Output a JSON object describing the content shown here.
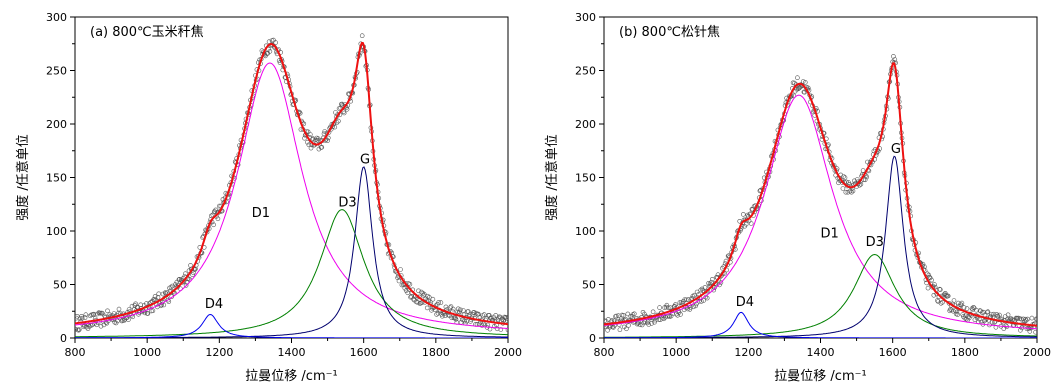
{
  "chart_data": [
    {
      "type": "line",
      "title": "(a) 800℃玉米秆焦",
      "xlabel": "拉曼位移 /cm⁻¹",
      "ylabel": "强度 /任意单位",
      "xlim": [
        800,
        2000
      ],
      "ylim": [
        0,
        300
      ],
      "xticks": [
        "800",
        "1000",
        "1200",
        "1400",
        "1600",
        "1800",
        "2000"
      ],
      "yticks": [
        "0",
        "50",
        "100",
        "150",
        "200",
        "250",
        "300"
      ],
      "grid": false,
      "series": [
        {
          "name": "D1",
          "color": "#ee00ee",
          "peak": {
            "center": 1340,
            "height": 255,
            "fwhm": 220
          },
          "baseline": 2
        },
        {
          "name": "D3",
          "color": "#008000",
          "peak": {
            "center": 1540,
            "height": 120,
            "fwhm": 150
          }
        },
        {
          "name": "G",
          "color": "#00006e",
          "peak": {
            "center": 1600,
            "height": 160,
            "fwhm": 60
          }
        },
        {
          "name": "D4",
          "color": "#0000ee",
          "peak": {
            "center": 1175,
            "height": 22,
            "fwhm": 55
          }
        },
        {
          "name": "",
          "role": "fit",
          "color": "#ee1111"
        },
        {
          "name": "",
          "role": "experimental",
          "color": "#555555"
        }
      ],
      "annotations": [
        {
          "text": "D1",
          "x": 1290,
          "y": 113
        },
        {
          "text": "D3",
          "x": 1530,
          "y": 123
        },
        {
          "text": "G",
          "x": 1590,
          "y": 163
        },
        {
          "text": "D4",
          "x": 1160,
          "y": 28
        }
      ]
    },
    {
      "type": "line",
      "title": "(b) 800℃松针焦",
      "xlabel": "拉曼位移 /cm⁻¹",
      "ylabel": "强度 /任意单位",
      "xlim": [
        800,
        2000
      ],
      "ylim": [
        0,
        300
      ],
      "xticks": [
        "800",
        "1000",
        "1200",
        "1400",
        "1600",
        "1800",
        "2000"
      ],
      "yticks": [
        "0",
        "50",
        "100",
        "150",
        "200",
        "250",
        "300"
      ],
      "grid": false,
      "series": [
        {
          "name": "D1",
          "color": "#ee00ee",
          "peak": {
            "center": 1340,
            "height": 225,
            "fwhm": 230
          },
          "baseline": 2
        },
        {
          "name": "D3",
          "color": "#008000",
          "peak": {
            "center": 1550,
            "height": 78,
            "fwhm": 140
          }
        },
        {
          "name": "G",
          "color": "#00006e",
          "peak": {
            "center": 1605,
            "height": 170,
            "fwhm": 60
          }
        },
        {
          "name": "D4",
          "color": "#0000ee",
          "peak": {
            "center": 1180,
            "height": 24,
            "fwhm": 50
          }
        },
        {
          "name": "",
          "role": "fit",
          "color": "#ee1111"
        },
        {
          "name": "",
          "role": "experimental",
          "color": "#555555"
        }
      ],
      "annotations": [
        {
          "text": "D1",
          "x": 1400,
          "y": 94
        },
        {
          "text": "D3",
          "x": 1525,
          "y": 86
        },
        {
          "text": "G",
          "x": 1595,
          "y": 173
        },
        {
          "text": "D4",
          "x": 1165,
          "y": 30
        }
      ]
    }
  ]
}
